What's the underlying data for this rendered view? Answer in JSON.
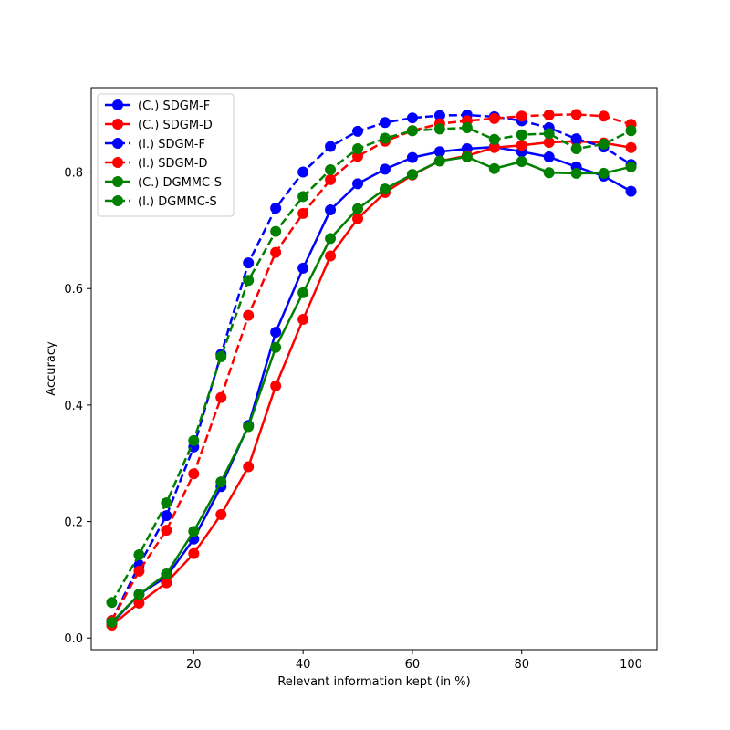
{
  "chart_data": {
    "type": "line",
    "title": "",
    "xlabel": "Relevant information kept (in %)",
    "ylabel": "Accuracy",
    "xlim": [
      1.25,
      104.75
    ],
    "ylim": [
      -0.02,
      0.945
    ],
    "xticks": [
      20,
      40,
      60,
      80,
      100
    ],
    "yticks": [
      0.0,
      0.2,
      0.4,
      0.6,
      0.8
    ],
    "ytick_labels": [
      "0.0",
      "0.2",
      "0.4",
      "0.6",
      "0.8"
    ],
    "grid": false,
    "legend_position": "upper-left",
    "x": [
      5,
      10,
      15,
      20,
      25,
      30,
      35,
      40,
      45,
      50,
      55,
      60,
      65,
      70,
      75,
      80,
      85,
      90,
      95,
      100
    ],
    "series": [
      {
        "name": "(C.) SDGM-F",
        "color": "#0000ff",
        "dashed": false,
        "values": [
          0.025,
          0.075,
          0.105,
          0.17,
          0.26,
          0.365,
          0.525,
          0.635,
          0.735,
          0.78,
          0.805,
          0.825,
          0.835,
          0.84,
          0.843,
          0.835,
          0.826,
          0.809,
          0.793,
          0.767
        ]
      },
      {
        "name": "(C.) SDGM-D",
        "color": "#ff0000",
        "dashed": false,
        "values": [
          0.022,
          0.06,
          0.095,
          0.145,
          0.212,
          0.294,
          0.433,
          0.547,
          0.656,
          0.72,
          0.765,
          0.795,
          0.819,
          0.828,
          0.842,
          0.846,
          0.851,
          0.853,
          0.85,
          0.842
        ]
      },
      {
        "name": "(I.) SDGM-F",
        "color": "#0000ff",
        "dashed": true,
        "values": [
          0.03,
          0.125,
          0.21,
          0.328,
          0.487,
          0.644,
          0.738,
          0.8,
          0.844,
          0.87,
          0.885,
          0.893,
          0.897,
          0.898,
          0.895,
          0.888,
          0.876,
          0.857,
          0.843,
          0.813
        ]
      },
      {
        "name": "(I.) SDGM-D",
        "color": "#ff0000",
        "dashed": true,
        "values": [
          0.03,
          0.115,
          0.185,
          0.282,
          0.413,
          0.554,
          0.662,
          0.729,
          0.787,
          0.827,
          0.853,
          0.871,
          0.883,
          0.888,
          0.892,
          0.896,
          0.898,
          0.899,
          0.896,
          0.882
        ]
      },
      {
        "name": "(C.) DGMMC-S",
        "color": "#008000",
        "dashed": false,
        "values": [
          0.027,
          0.075,
          0.11,
          0.183,
          0.268,
          0.363,
          0.499,
          0.593,
          0.686,
          0.737,
          0.771,
          0.796,
          0.819,
          0.826,
          0.806,
          0.818,
          0.799,
          0.798,
          0.798,
          0.809
        ]
      },
      {
        "name": "(I.) DGMMC-S",
        "color": "#008000",
        "dashed": true,
        "values": [
          0.061,
          0.143,
          0.232,
          0.339,
          0.483,
          0.614,
          0.698,
          0.758,
          0.804,
          0.84,
          0.858,
          0.871,
          0.874,
          0.876,
          0.856,
          0.864,
          0.866,
          0.84,
          0.848,
          0.871
        ]
      }
    ]
  }
}
